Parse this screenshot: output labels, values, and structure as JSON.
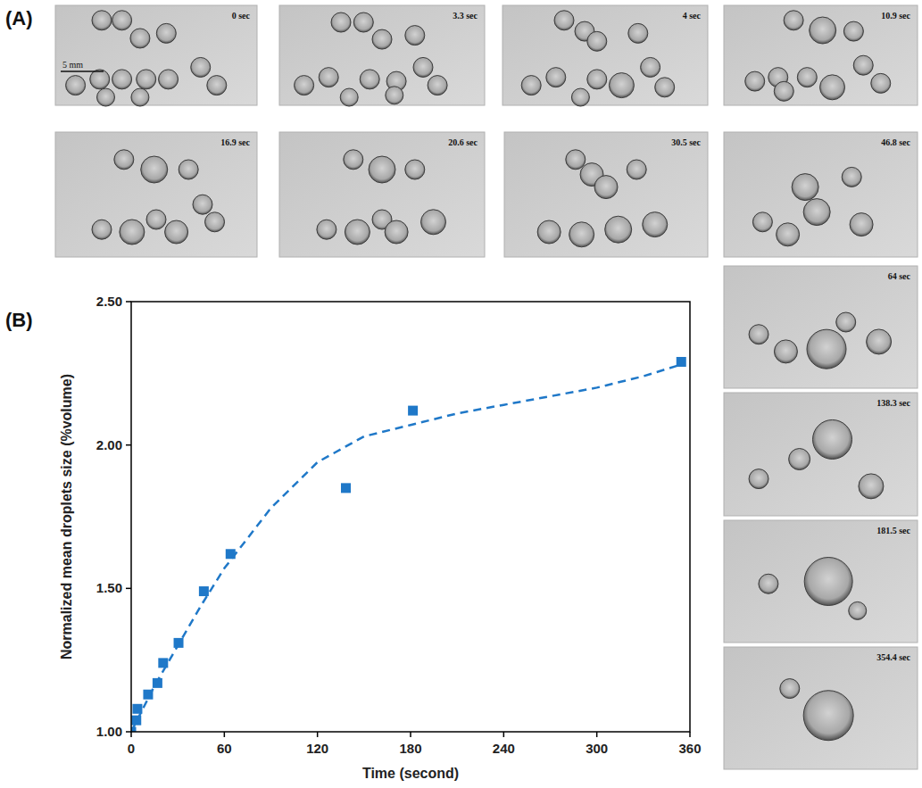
{
  "figure": {
    "panel_labels": [
      "(A)",
      "(B)"
    ],
    "scale_bar": "5 mm",
    "frames": [
      "0 sec",
      "3.3 sec",
      "4 sec",
      "10.9 sec",
      "16.9 sec",
      "20.6 sec",
      "30.5 sec",
      "46.8 sec",
      "64 sec",
      "138.3 sec",
      "181.5 sec",
      "354.4 sec"
    ]
  },
  "chart_data": {
    "type": "scatter",
    "x_label": "Time (second)",
    "y_label": "Normalized mean droplets size (%volume)",
    "xlim": [
      0,
      360
    ],
    "xticks": [
      0,
      60,
      120,
      180,
      240,
      300,
      360
    ],
    "ylim": [
      1,
      2.5
    ],
    "yticks": [
      {
        "value": 1,
        "label": "1.00"
      },
      {
        "value": 1.5,
        "label": "1.50"
      },
      {
        "value": 2,
        "label": "2.00"
      },
      {
        "value": 2.5,
        "label": "2.50"
      }
    ],
    "grid": false,
    "series": [
      {
        "type": "scatter",
        "marker": "square",
        "color": "#1f78c8",
        "x": [
          0,
          3.3,
          4,
          10.9,
          16.9,
          20.6,
          30.5,
          46.8,
          64,
          138.3,
          181.5,
          354.4
        ],
        "values": [
          1.0,
          1.04,
          1.08,
          1.13,
          1.17,
          1.24,
          1.31,
          1.49,
          1.62,
          1.85,
          2.12,
          2.29
        ]
      },
      {
        "type": "line",
        "line_style": "dashed",
        "color": "#1f78c8",
        "x": [
          0,
          15,
          30,
          45,
          60,
          90,
          120,
          150,
          180,
          210,
          240,
          270,
          300,
          330,
          354
        ],
        "values": [
          1.0,
          1.16,
          1.3,
          1.44,
          1.57,
          1.78,
          1.94,
          2.03,
          2.07,
          2.11,
          2.14,
          2.17,
          2.2,
          2.24,
          2.28
        ]
      }
    ]
  }
}
